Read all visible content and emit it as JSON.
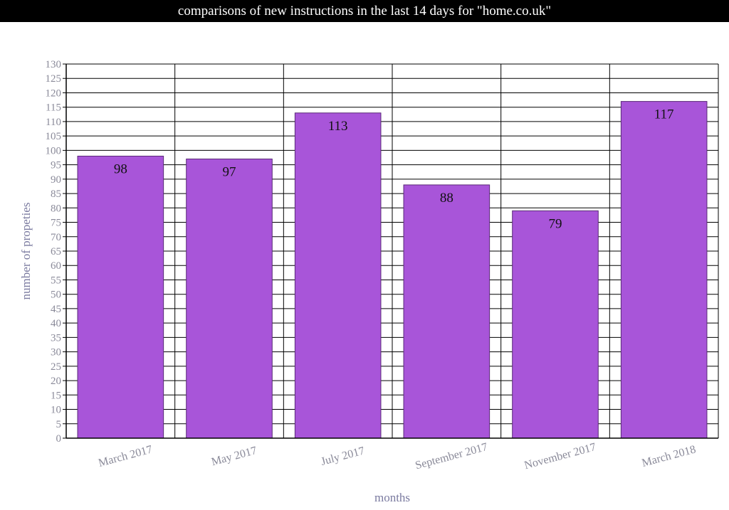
{
  "title": "comparisons of new instructions in the last 14 days for \"home.co.uk\"",
  "colors": {
    "bar_fill": "#a855d9",
    "bar_stroke": "#5a2a78",
    "axis_label": "#7b7ba0",
    "tick_label": "#8a8a99",
    "grid": "#000000",
    "title_bg": "#000000",
    "title_text": "#ffffff"
  },
  "chart_data": {
    "type": "bar",
    "title": "comparisons of new instructions in the last 14 days for \"home.co.uk\"",
    "xlabel": "months",
    "ylabel": "number of propeties",
    "categories": [
      "March 2017",
      "May 2017",
      "July 2017",
      "September 2017",
      "November 2017",
      "March 2018"
    ],
    "values": [
      98,
      97,
      113,
      88,
      79,
      117
    ],
    "data_labels": [
      "98",
      "97",
      "113",
      "88",
      "79",
      "117"
    ],
    "ylim": [
      0,
      130
    ],
    "ytick_step": 5,
    "yticks": [
      "0",
      "5",
      "10",
      "15",
      "20",
      "25",
      "30",
      "35",
      "40",
      "45",
      "50",
      "55",
      "60",
      "65",
      "70",
      "75",
      "80",
      "85",
      "90",
      "95",
      "100",
      "105",
      "110",
      "115",
      "120",
      "125",
      "130"
    ],
    "grid": true
  }
}
